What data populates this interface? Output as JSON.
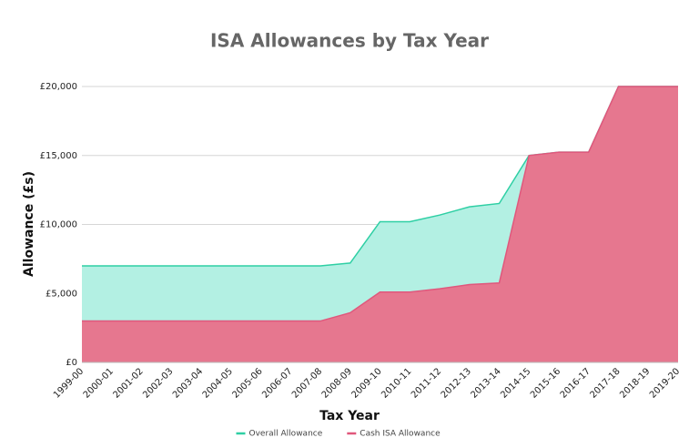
{
  "chart_data": {
    "type": "area",
    "title": "ISA Allowances by Tax Year",
    "x_label": "Tax Year",
    "y_label": "Allowance (£s)",
    "categories": [
      "1999-00",
      "2000-01",
      "2001-02",
      "2002-03",
      "2003-04",
      "2004-05",
      "2005-06",
      "2006-07",
      "2007-08",
      "2008-09",
      "2009-10",
      "2010-11",
      "2011-12",
      "2012-13",
      "2013-14",
      "2014-15",
      "2015-16",
      "2016-17",
      "2017-18",
      "2018-19",
      "2019-20"
    ],
    "series": [
      {
        "name": "Overall Allowance",
        "color": "#2ecfa4",
        "fill": "#b3f0e3",
        "values": [
          7000,
          7000,
          7000,
          7000,
          7000,
          7000,
          7000,
          7000,
          7000,
          7200,
          10200,
          10200,
          10680,
          11280,
          11520,
          15000,
          15240,
          15240,
          20000,
          20000,
          20000
        ]
      },
      {
        "name": "Cash ISA Allowance",
        "color": "#e0577c",
        "fill": "#e6778f",
        "values": [
          3000,
          3000,
          3000,
          3000,
          3000,
          3000,
          3000,
          3000,
          3000,
          3600,
          5100,
          5100,
          5340,
          5640,
          5760,
          15000,
          15240,
          15240,
          20000,
          20000,
          20000
        ]
      }
    ],
    "ylim": [
      0,
      20000
    ],
    "yticks": [
      {
        "value": 0,
        "label": "£0"
      },
      {
        "value": 5000,
        "label": "£5,000"
      },
      {
        "value": 10000,
        "label": "£10,000"
      },
      {
        "value": 15000,
        "label": "£15,000"
      },
      {
        "value": 20000,
        "label": "£20,000"
      }
    ],
    "grid": true,
    "legend": "bottom"
  }
}
